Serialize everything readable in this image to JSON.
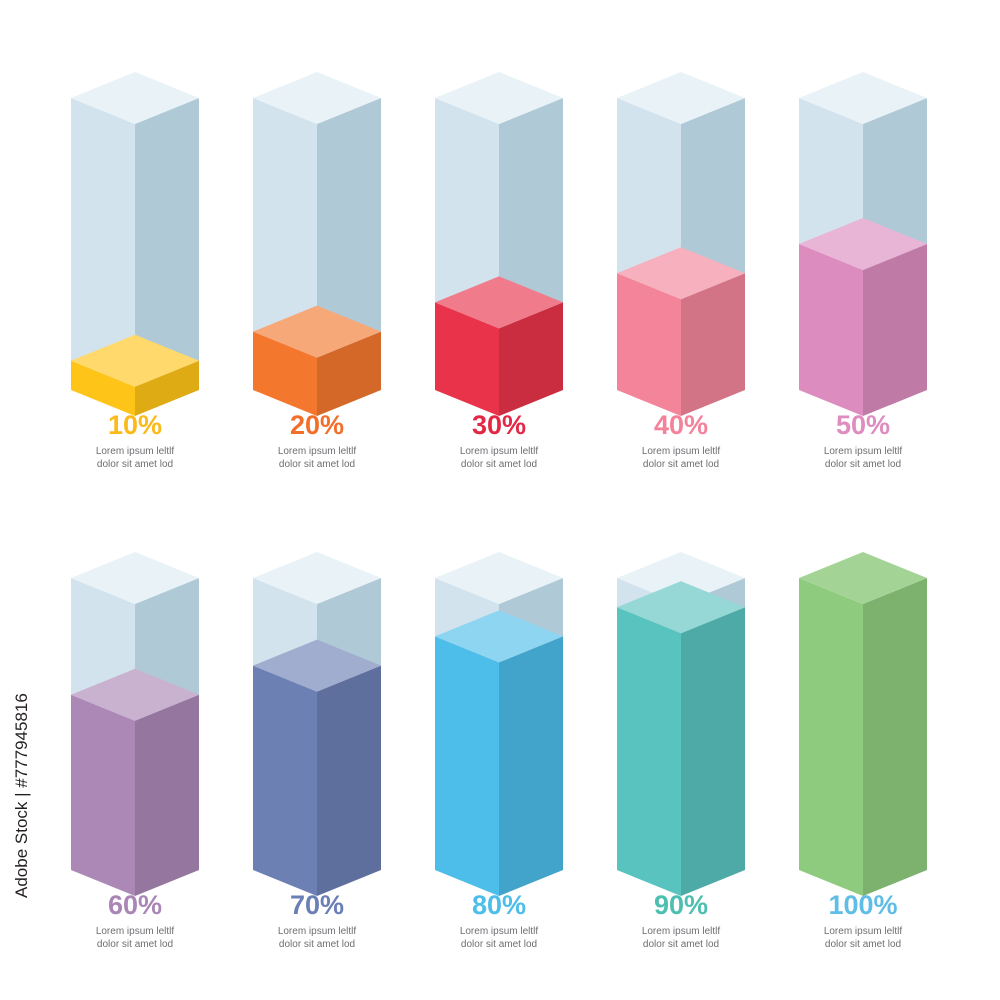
{
  "chart_data": {
    "type": "bar",
    "categories": [
      "10%",
      "20%",
      "30%",
      "40%",
      "50%",
      "60%",
      "70%",
      "80%",
      "90%",
      "100%"
    ],
    "values": [
      10,
      20,
      30,
      40,
      50,
      60,
      70,
      80,
      90,
      100
    ],
    "ylim": [
      0,
      100
    ],
    "colors": [
      "#ffc418",
      "#f4772e",
      "#e8334a",
      "#f3849a",
      "#dc8cbf",
      "#ab88b6",
      "#6d80b4",
      "#4dbde9",
      "#59c3bf",
      "#8fcb7f"
    ],
    "description_lines": [
      "Lorem ipsum leltlf",
      "dolor sit amet lod"
    ],
    "label_colors": [
      "#fbb91a",
      "#f26f2b",
      "#e22845",
      "#f3829a",
      "#df8cc0",
      "#a986b5",
      "#6a7fb6",
      "#4dbde9",
      "#4cbfb0",
      "#60bde6"
    ],
    "empty_colors": {
      "top": "#e8f2f7",
      "front": "#d3e3ee",
      "side": "#b0c9d6"
    }
  },
  "watermark": {
    "stock_id": "Adobe Stock | #777945816"
  }
}
